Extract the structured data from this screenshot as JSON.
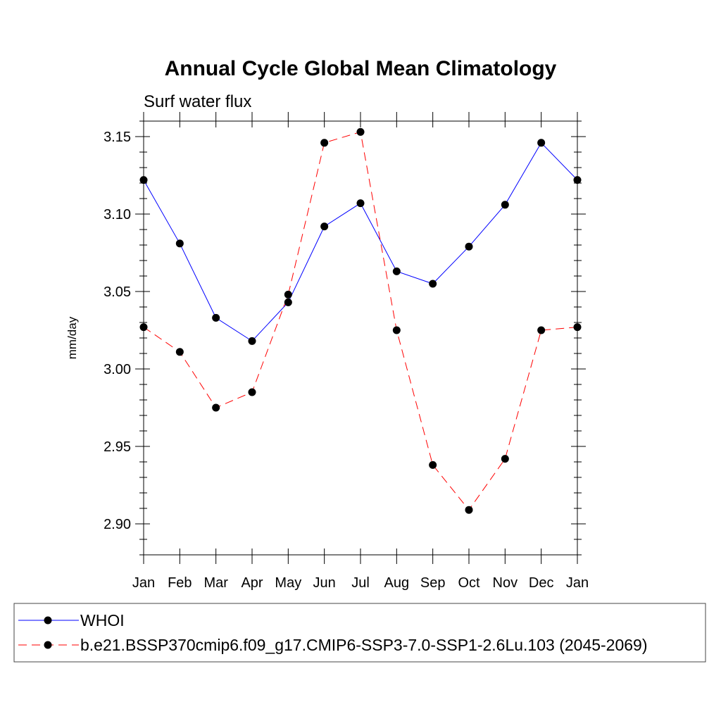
{
  "chart_data": {
    "type": "line",
    "title": "Annual Cycle Global Mean Climatology",
    "subtitle": "Surf water flux",
    "xlabel": "",
    "ylabel": "mm/day",
    "categories": [
      "Jan",
      "Feb",
      "Mar",
      "Apr",
      "May",
      "Jun",
      "Jul",
      "Aug",
      "Sep",
      "Oct",
      "Nov",
      "Dec",
      "Jan"
    ],
    "ylim": [
      2.88,
      3.16
    ],
    "yticks": [
      "3.15",
      "3.10",
      "3.05",
      "3.00",
      "2.95",
      "2.90"
    ],
    "ytick_values": [
      3.15,
      3.1,
      3.05,
      3.0,
      2.95,
      2.9
    ],
    "grid": false,
    "legend_position": "bottom",
    "series": [
      {
        "name": "WHOI",
        "color": "#0000ff",
        "dash": "solid",
        "marker": "circle",
        "values": [
          3.122,
          3.081,
          3.033,
          3.018,
          3.043,
          3.092,
          3.107,
          3.063,
          3.055,
          3.079,
          3.106,
          3.146,
          3.122
        ]
      },
      {
        "name": "b.e21.BSSP370cmip6.f09_g17.CMIP6-SSP3-7.0-SSP1-2.6Lu.103 (2045-2069)",
        "color": "#ff0000",
        "dash": "dashed",
        "marker": "circle",
        "values": [
          3.027,
          3.011,
          2.975,
          2.985,
          3.048,
          3.146,
          3.153,
          3.025,
          2.938,
          2.909,
          2.942,
          3.025,
          3.027
        ]
      }
    ]
  }
}
